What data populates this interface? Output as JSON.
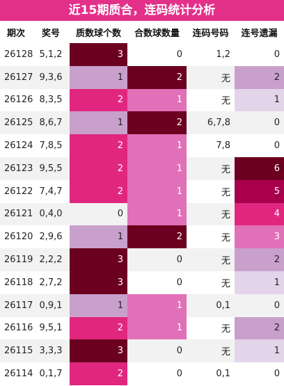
{
  "title": "近15期质合，连码统计分析",
  "table": {
    "header": [
      "期次",
      "奖号",
      "质数球个数",
      "合数球数量",
      "连码号码",
      "连号遗漏"
    ],
    "rows": [
      [
        26128,
        "5,1,2",
        3,
        0,
        "1,2",
        0
      ],
      [
        26127,
        "9,3,6",
        1,
        2,
        "无",
        2
      ],
      [
        26126,
        "8,3,5",
        2,
        1,
        "无",
        1
      ],
      [
        26125,
        "8,6,7",
        1,
        2,
        "6,7,8",
        0
      ],
      [
        26124,
        "7,8,5",
        2,
        1,
        "7,8",
        0
      ],
      [
        26123,
        "9,5,5",
        2,
        1,
        "无",
        6
      ],
      [
        26122,
        "7,4,7",
        2,
        1,
        "无",
        5
      ],
      [
        26121,
        "0,4,0",
        0,
        1,
        "无",
        4
      ],
      [
        26120,
        "2,9,6",
        1,
        2,
        "无",
        3
      ],
      [
        26119,
        "2,2,2",
        3,
        0,
        "无",
        2
      ],
      [
        26118,
        "2,7,2",
        3,
        0,
        "无",
        1
      ],
      [
        26117,
        "0,9,1",
        1,
        1,
        "0,1",
        0
      ],
      [
        26116,
        "9,5,1",
        2,
        1,
        "无",
        2
      ],
      [
        26115,
        "3,3,3",
        3,
        0,
        "无",
        1
      ],
      [
        26114,
        "0,1,7",
        2,
        0,
        "0,1",
        0
      ]
    ]
  }
}
